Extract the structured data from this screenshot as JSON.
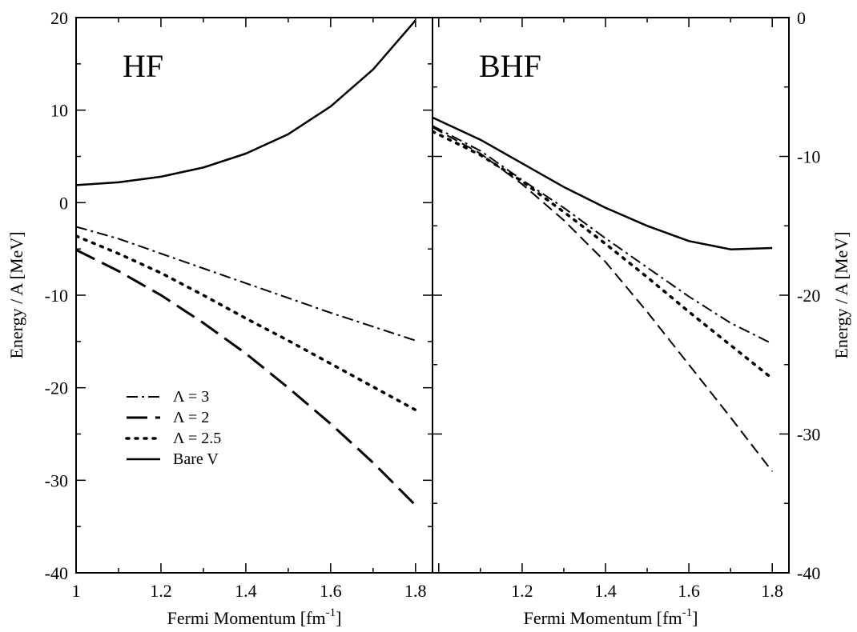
{
  "chart_data": [
    {
      "type": "line",
      "panel_label": "HF",
      "xlabel": "Fermi Momentum [fm",
      "xlabel_sup": "-1",
      "xlabel_close": "]",
      "ylabel": "Energy / A [MeV]",
      "xlim": [
        1.0,
        1.84
      ],
      "ylim": [
        -40,
        20
      ],
      "x_ticks": [
        1,
        1.2,
        1.4,
        1.6,
        1.8
      ],
      "x_tick_labels": [
        "1",
        "1.2",
        "1.4",
        "1.6",
        "1.8"
      ],
      "y_ticks": [
        -40,
        -30,
        -20,
        -10,
        0,
        10,
        20
      ],
      "y_tick_labels": [
        "-40",
        "-30",
        "-20",
        "-10",
        "0",
        "10",
        "20"
      ],
      "grid": false,
      "legend": {
        "position": "lower-left",
        "entries": [
          "Λ = 3",
          "Λ = 2",
          "Λ = 2.5",
          "Bare V"
        ]
      },
      "series": [
        {
          "name": "Λ = 3",
          "style": "dashdot",
          "x": [
            1.0,
            1.1,
            1.2,
            1.3,
            1.4,
            1.5,
            1.6,
            1.7,
            1.8
          ],
          "y": [
            -2.6,
            -3.9,
            -5.5,
            -7.1,
            -8.7,
            -10.3,
            -11.9,
            -13.4,
            -14.9
          ]
        },
        {
          "name": "Λ = 2",
          "style": "longdash",
          "x": [
            1.0,
            1.1,
            1.2,
            1.3,
            1.4,
            1.5,
            1.6,
            1.7,
            1.8
          ],
          "y": [
            -5.1,
            -7.4,
            -10.0,
            -13.0,
            -16.3,
            -20.0,
            -23.9,
            -28.1,
            -32.7
          ]
        },
        {
          "name": "Λ = 2.5",
          "style": "dotted",
          "x": [
            1.0,
            1.1,
            1.2,
            1.3,
            1.4,
            1.5,
            1.6,
            1.7,
            1.8
          ],
          "y": [
            -3.6,
            -5.5,
            -7.6,
            -10.0,
            -12.5,
            -14.9,
            -17.4,
            -19.9,
            -22.4
          ]
        },
        {
          "name": "Bare V",
          "style": "solid",
          "x": [
            1.0,
            1.1,
            1.2,
            1.3,
            1.4,
            1.5,
            1.6,
            1.7,
            1.8
          ],
          "y": [
            1.9,
            2.2,
            2.8,
            3.8,
            5.3,
            7.4,
            10.4,
            14.4,
            19.7
          ]
        }
      ]
    },
    {
      "type": "line",
      "panel_label": "BHF",
      "xlabel": "Fermi Momentum [fm",
      "xlabel_sup": "-1",
      "xlabel_close": "]",
      "ylabel": "Energy / A [MeV]",
      "xlim": [
        0.985,
        1.84
      ],
      "ylim": [
        -40,
        0
      ],
      "x_ticks": [
        1.2,
        1.4,
        1.6,
        1.8
      ],
      "x_tick_labels": [
        "1.2",
        "1.4",
        "1.6",
        "1.8"
      ],
      "y_ticks": [
        -40,
        -30,
        -20,
        -10,
        0
      ],
      "y_tick_labels": [
        "-40",
        "-30",
        "-20",
        "-10",
        "0"
      ],
      "grid": false,
      "series": [
        {
          "name": "Λ = 3",
          "style": "dashdot",
          "x": [
            0.985,
            1.1,
            1.2,
            1.3,
            1.4,
            1.5,
            1.6,
            1.7,
            1.8
          ],
          "y": [
            -7.8,
            -9.6,
            -11.7,
            -13.7,
            -15.9,
            -18.0,
            -20.1,
            -22.0,
            -23.5
          ]
        },
        {
          "name": "Λ = 2",
          "style": "dashed",
          "x": [
            0.985,
            1.1,
            1.2,
            1.3,
            1.4,
            1.5,
            1.6,
            1.7,
            1.8
          ],
          "y": [
            -7.9,
            -9.8,
            -12.0,
            -14.6,
            -17.6,
            -21.2,
            -25.0,
            -28.8,
            -32.7
          ]
        },
        {
          "name": "Λ = 2.5",
          "style": "dotted",
          "x": [
            0.985,
            1.1,
            1.2,
            1.3,
            1.4,
            1.5,
            1.6,
            1.7,
            1.8
          ],
          "y": [
            -8.2,
            -9.9,
            -11.8,
            -14.0,
            -16.3,
            -18.7,
            -21.2,
            -23.6,
            -26.0
          ]
        },
        {
          "name": "Bare V",
          "style": "solid",
          "x": [
            0.985,
            1.1,
            1.2,
            1.3,
            1.4,
            1.5,
            1.6,
            1.7,
            1.8
          ],
          "y": [
            -7.2,
            -8.8,
            -10.5,
            -12.2,
            -13.7,
            -15.0,
            -16.1,
            -16.7,
            -16.6
          ]
        }
      ]
    }
  ]
}
